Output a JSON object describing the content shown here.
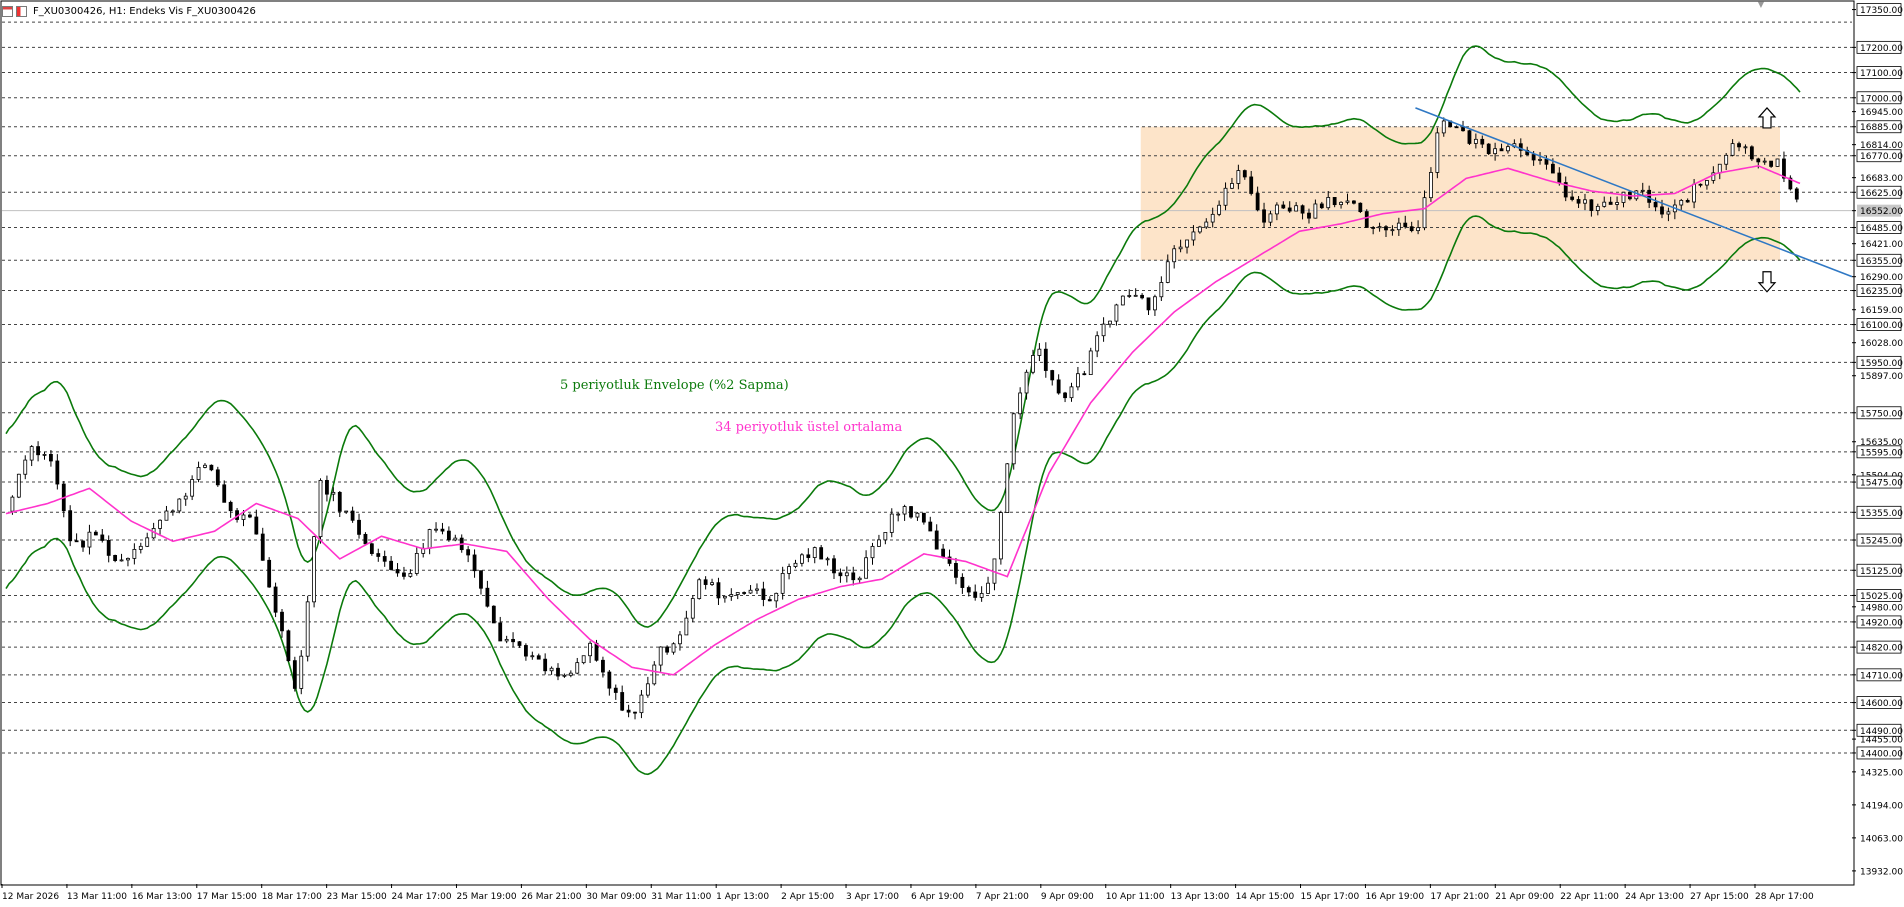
{
  "header": {
    "title": "F_XU0300426, H1:  Endeks Vis F_XU0300426"
  },
  "colors": {
    "envelope": "#0b7a0b",
    "ema": "#ff33cc",
    "trendline": "#2f78c4",
    "box_fill": "#fde3c6",
    "candle": "#000000",
    "grid": "#444444"
  },
  "annotations": {
    "envelope_label": "5 periyotluk Envelope (%2 Sapma)",
    "ema_label": "34 periyotluk üstel ortalama"
  },
  "chart_data": {
    "type": "line",
    "title": "",
    "ylim": [
      13880,
      17380
    ],
    "y_tick_labels": [
      17350,
      17200,
      17100,
      17000,
      16945,
      16885,
      16814,
      16770,
      16683,
      16625,
      16552,
      16485,
      16421,
      16355,
      16290,
      16235,
      16159,
      16100,
      16028,
      15950,
      15897,
      15750,
      15635,
      15595,
      15504,
      15475,
      15355,
      15245,
      15125,
      15025,
      14980,
      14920,
      14820,
      14710,
      14600,
      14490,
      14455,
      14400,
      14325,
      14194,
      14063,
      13932
    ],
    "boxed_levels": [
      17350,
      17200,
      17100,
      17000,
      16885,
      16770,
      16625,
      16485,
      16355,
      16235,
      16100,
      15950,
      15750,
      15595,
      15475,
      15355,
      15245,
      15125,
      15025,
      14920,
      14820,
      14710,
      14600,
      14490,
      14400
    ],
    "current_price": "16552.00",
    "horizontal_levels": [
      17300,
      17200,
      17100,
      17000,
      16885,
      16770,
      16625,
      16485,
      16355,
      16235,
      16100,
      15950,
      15750,
      15595,
      15475,
      15355,
      15245,
      15125,
      15025,
      14920,
      14820,
      14710,
      14600,
      14490,
      14400
    ],
    "x_labels": [
      "12 Mar 2026",
      "13 Mar 11:00",
      "16 Mar 13:00",
      "17 Mar 15:00",
      "18 Mar 17:00",
      "23 Mar 15:00",
      "24 Mar 17:00",
      "25 Mar 19:00",
      "26 Mar 21:00",
      "30 Mar 09:00",
      "31 Mar 11:00",
      "1 Apr 13:00",
      "2 Apr 15:00",
      "3 Apr 17:00",
      "6 Apr 19:00",
      "7 Apr 21:00",
      "9 Apr 09:00",
      "10 Apr 11:00",
      "13 Apr 13:00",
      "14 Apr 15:00",
      "15 Apr 17:00",
      "16 Apr 19:00",
      "17 Apr 21:00",
      "21 Apr 09:00",
      "22 Apr 11:00",
      "24 Apr 13:00",
      "27 Apr 15:00",
      "28 Apr 17:00"
    ],
    "price_path": [
      15360,
      15620,
      15560,
      15210,
      15270,
      15150,
      15240,
      15330,
      15440,
      15560,
      15350,
      15310,
      14980,
      14640,
      15480,
      15370,
      15250,
      15130,
      15120,
      15300,
      15260,
      15120,
      14870,
      14820,
      14730,
      14690,
      14820,
      14640,
      14540,
      14780,
      14870,
      15090,
      15020,
      15060,
      15000,
      15150,
      15200,
      15130,
      15090,
      15270,
      15380,
      15310,
      15150,
      15010,
      15100,
      15790,
      16020,
      15810,
      15900,
      16110,
      16230,
      16180,
      16390,
      16490,
      16560,
      16720,
      16520,
      16580,
      16540,
      16610,
      16570,
      16460,
      16500,
      16490,
      16930,
      16850,
      16800,
      16820,
      16790,
      16680,
      16580,
      16560,
      16600,
      16620,
      16520,
      16610,
      16690,
      16830,
      16770,
      16740,
      16550
    ],
    "ema_path": [
      15350,
      15390,
      15450,
      15320,
      15240,
      15280,
      15390,
      15330,
      15170,
      15260,
      15210,
      15230,
      15200,
      15010,
      14850,
      14740,
      14710,
      14830,
      14930,
      15010,
      15060,
      15090,
      15190,
      15160,
      15100,
      15510,
      15790,
      15990,
      16150,
      16270,
      16370,
      16470,
      16500,
      16540,
      16560,
      16680,
      16720,
      16670,
      16630,
      16610,
      16620,
      16700,
      16730,
      16660
    ],
    "trendline": {
      "from": {
        "x": "16 Apr 19:00",
        "y": 16960
      },
      "to": {
        "y": 16290
      }
    },
    "consolidation_box": {
      "y_top": 16885,
      "y_bottom": 16355,
      "x_from": "10 Apr 11:00",
      "x_to": "28 Apr 17:00"
    },
    "arrows": [
      {
        "direction": "up",
        "y": 16920
      },
      {
        "direction": "down",
        "y": 16270
      }
    ],
    "grid": true,
    "legend": "none"
  }
}
